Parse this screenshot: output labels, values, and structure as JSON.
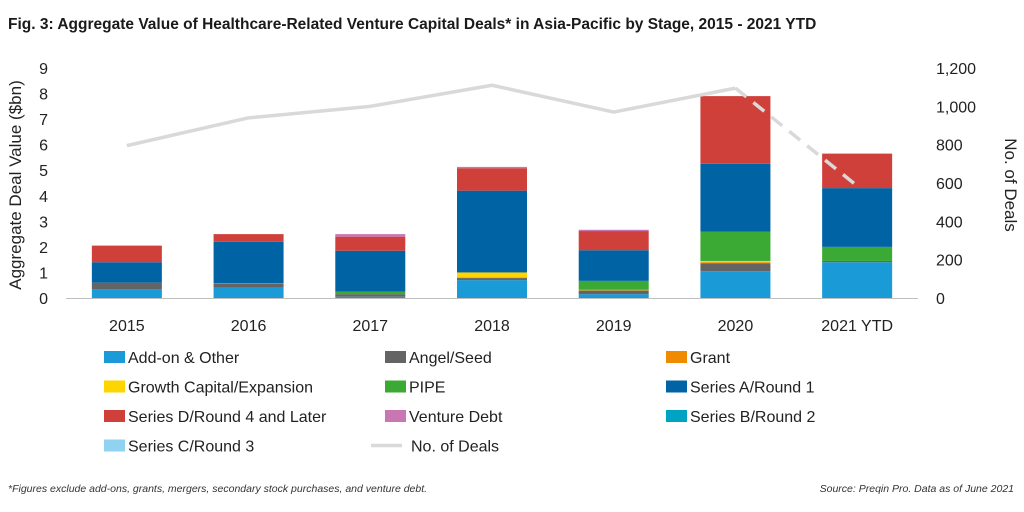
{
  "chart_data": {
    "type": "bar",
    "title": "Fig. 3: Aggregate Value of Healthcare-Related Venture Capital Deals* in Asia-Pacific by Stage, 2015 - 2021 YTD",
    "categories": [
      "2015",
      "2016",
      "2017",
      "2018",
      "2019",
      "2020",
      "2021 YTD"
    ],
    "ylabel": "Aggregate Deal Value ($bn)",
    "ylim": [
      0,
      9
    ],
    "yticks": [
      "0",
      "1",
      "2",
      "3",
      "4",
      "5",
      "6",
      "7",
      "8",
      "9"
    ],
    "y2label": "No. of Deals",
    "y2lim": [
      0,
      1200
    ],
    "y2ticks": [
      "0",
      "200",
      "400",
      "600",
      "800",
      "1,000",
      "1,200"
    ],
    "stacked": true,
    "series": [
      {
        "name": "Add-on & Other",
        "color": "#1a9ad6",
        "values": [
          0.35,
          0.4,
          0.05,
          0.7,
          0.15,
          1.05,
          1.4
        ]
      },
      {
        "name": "Angel/Seed",
        "color": "#646464",
        "values": [
          0.25,
          0.15,
          0.1,
          0.08,
          0.15,
          0.3,
          0.05
        ]
      },
      {
        "name": "Grant",
        "color": "#f08a00",
        "values": [
          0.0,
          0.0,
          0.0,
          0.02,
          0.0,
          0.05,
          0.0
        ]
      },
      {
        "name": "Growth Capital/Expansion",
        "color": "#ffd500",
        "values": [
          0.0,
          0.0,
          0.0,
          0.2,
          0.02,
          0.05,
          0.0
        ]
      },
      {
        "name": "PIPE",
        "color": "#3aaa35",
        "values": [
          0.0,
          0.03,
          0.1,
          0.0,
          0.35,
          1.15,
          0.55
        ]
      },
      {
        "name": "Series A/Round 1",
        "color": "#0063a3",
        "values": [
          0.8,
          1.62,
          1.6,
          3.2,
          1.2,
          2.65,
          2.3
        ]
      },
      {
        "name": "Series D/Round 4 and Later",
        "color": "#d0403a",
        "values": [
          0.65,
          0.3,
          0.55,
          0.88,
          0.75,
          2.65,
          1.35
        ]
      },
      {
        "name": "Venture Debt",
        "color": "#c876b4",
        "values": [
          0.0,
          0.0,
          0.1,
          0.05,
          0.05,
          0.0,
          0.0
        ]
      },
      {
        "name": "Series B/Round 2",
        "color": "#00a3c2",
        "values": [
          0.0,
          0.0,
          0.0,
          0.0,
          0.0,
          0.0,
          0.0
        ]
      },
      {
        "name": "Series C/Round 3",
        "color": "#8fd3f0",
        "values": [
          0.0,
          0.0,
          0.0,
          0.0,
          0.0,
          0.0,
          0.0
        ]
      }
    ],
    "line": {
      "name": "No. of Deals",
      "color": "#d9d9d9",
      "axis": "right",
      "values": [
        795,
        940,
        1000,
        1110,
        970,
        1095,
        585
      ],
      "dashed_last_segment": true
    },
    "legend_position": "bottom",
    "footnote": "*Figures exclude add-ons, grants, mergers, secondary stock purchases, and venture debt.",
    "source": "Source: Preqin Pro. Data as of June 2021"
  }
}
